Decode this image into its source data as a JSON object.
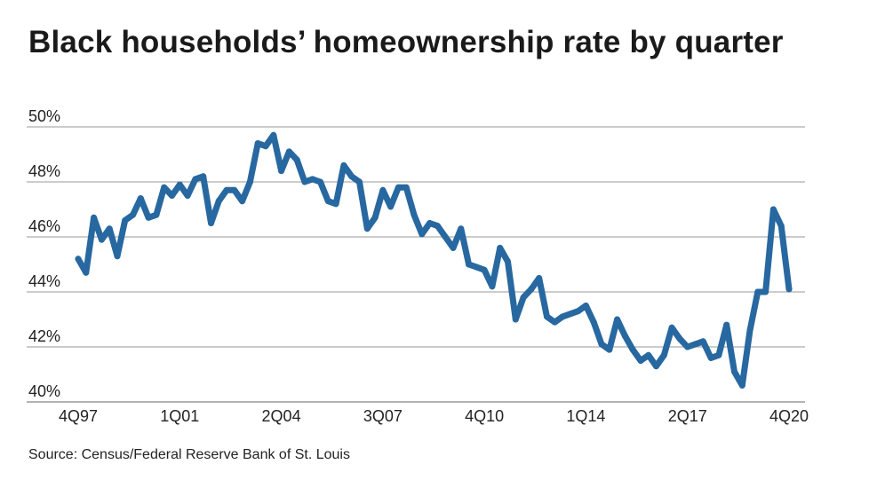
{
  "title": "Black households’ homeownership rate by quarter",
  "source": "Source: Census/Federal Reserve Bank of St. Louis",
  "colors": {
    "line": "#2868a0",
    "grid": "#9a9a9a"
  },
  "chart_data": {
    "type": "line",
    "title": "Black households’ homeownership rate by quarter",
    "xlabel": "",
    "ylabel": "",
    "ylim": [
      40,
      50
    ],
    "yticks": [
      40,
      42,
      44,
      46,
      48,
      50
    ],
    "ytick_labels": [
      "40%",
      "42%",
      "44%",
      "46%",
      "48%",
      "50%"
    ],
    "grid": true,
    "legend": "none",
    "x_range": [
      "4Q97",
      "4Q20"
    ],
    "xtick_labels": [
      "4Q97",
      "1Q01",
      "2Q04",
      "3Q07",
      "4Q10",
      "1Q14",
      "2Q17",
      "4Q20"
    ],
    "series": [
      {
        "values": [
          45.2,
          44.7,
          46.7,
          45.9,
          46.3,
          45.3,
          46.6,
          46.8,
          47.4,
          46.7,
          46.8,
          47.8,
          47.5,
          47.9,
          47.5,
          48.1,
          48.2,
          46.5,
          47.3,
          47.7,
          47.7,
          47.3,
          48.0,
          49.4,
          49.3,
          49.7,
          48.4,
          49.1,
          48.8,
          48.0,
          48.1,
          48.0,
          47.3,
          47.2,
          48.6,
          48.2,
          48.0,
          46.3,
          46.7,
          47.7,
          47.1,
          47.8,
          47.8,
          46.8,
          46.1,
          46.5,
          46.4,
          46.0,
          45.6,
          46.3,
          45.0,
          44.9,
          44.8,
          44.2,
          45.6,
          45.1,
          43.0,
          43.8,
          44.1,
          44.5,
          43.1,
          42.9,
          43.1,
          43.2,
          43.3,
          43.5,
          42.9,
          42.1,
          41.9,
          43.0,
          42.4,
          41.9,
          41.5,
          41.7,
          41.3,
          41.7,
          42.7,
          42.3,
          42.0,
          42.1,
          42.2,
          41.6,
          41.7,
          42.8,
          41.1,
          40.6,
          42.6,
          44.0,
          44.0,
          47.0,
          46.4,
          44.1
        ]
      }
    ]
  }
}
